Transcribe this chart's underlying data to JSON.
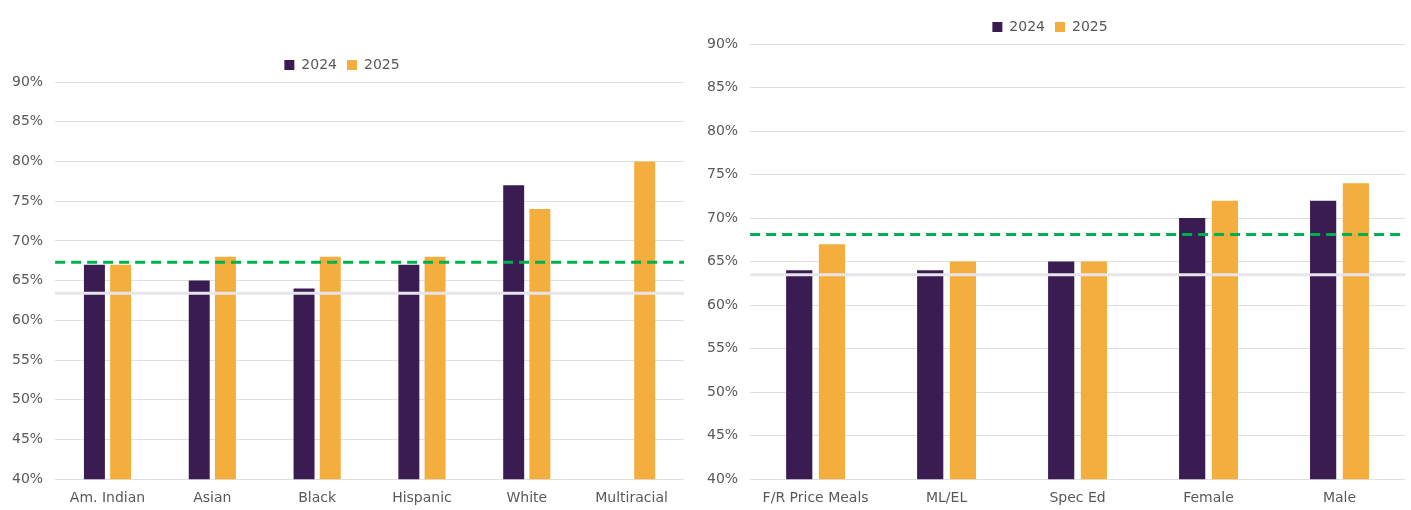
{
  "chart_data": [
    {
      "type": "bar",
      "categories": [
        "Am. Indian",
        "Asian",
        "Black",
        "Hispanic",
        "White",
        "Multiracial"
      ],
      "series": [
        {
          "name": "2024",
          "color": "#3b1c52",
          "values": [
            67,
            65,
            64,
            67,
            77,
            null
          ]
        },
        {
          "name": "2025",
          "color": "#f4ae3d",
          "values": [
            67,
            68,
            68,
            68,
            74,
            80
          ]
        }
      ],
      "ylim": [
        40,
        90
      ],
      "yticks": [
        {
          "value": 40,
          "label": "40%"
        },
        {
          "value": 45,
          "label": "45%"
        },
        {
          "value": 50,
          "label": "50%"
        },
        {
          "value": 55,
          "label": "55%"
        },
        {
          "value": 60,
          "label": "60%"
        },
        {
          "value": 65,
          "label": "65%"
        },
        {
          "value": 70,
          "label": "70%"
        },
        {
          "value": 75,
          "label": "75%"
        },
        {
          "value": 80,
          "label": "80%"
        },
        {
          "value": 85,
          "label": "85%"
        },
        {
          "value": 90,
          "label": "90%"
        }
      ],
      "grid": "y",
      "legend": "top",
      "ref_lines": [
        {
          "axis": "y",
          "value": 67.3,
          "color": "#00b050",
          "line_style": "dashed"
        },
        {
          "axis": "y",
          "value": 63.4,
          "color": "#e8e4ec",
          "line_style": "solid"
        }
      ]
    },
    {
      "type": "bar",
      "categories": [
        "F/R Price Meals",
        "ML/EL",
        "Spec Ed",
        "Female",
        "Male"
      ],
      "series": [
        {
          "name": "2024",
          "color": "#3b1c52",
          "values": [
            64,
            64,
            65,
            70,
            72
          ]
        },
        {
          "name": "2025",
          "color": "#f4ae3d",
          "values": [
            67,
            65,
            65,
            72,
            74
          ]
        }
      ],
      "ylim": [
        40,
        90
      ],
      "yticks": [
        {
          "value": 40,
          "label": "40%"
        },
        {
          "value": 45,
          "label": "45%"
        },
        {
          "value": 50,
          "label": "50%"
        },
        {
          "value": 55,
          "label": "55%"
        },
        {
          "value": 60,
          "label": "60%"
        },
        {
          "value": 65,
          "label": "65%"
        },
        {
          "value": 70,
          "label": "70%"
        },
        {
          "value": 75,
          "label": "75%"
        },
        {
          "value": 80,
          "label": "80%"
        },
        {
          "value": 85,
          "label": "85%"
        },
        {
          "value": 90,
          "label": "90%"
        }
      ],
      "grid": "y",
      "legend": "top",
      "ref_lines": [
        {
          "axis": "y",
          "value": 68.1,
          "color": "#00b050",
          "line_style": "dashed"
        },
        {
          "axis": "y",
          "value": 63.5,
          "color": "#e8e4ec",
          "line_style": "solid"
        }
      ]
    }
  ]
}
